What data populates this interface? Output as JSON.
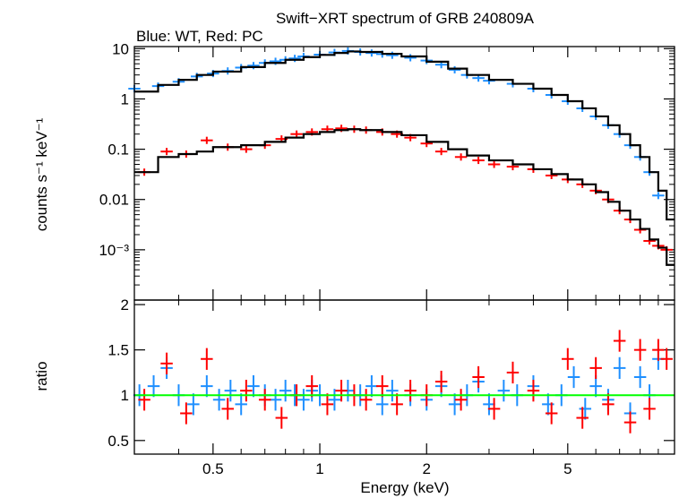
{
  "chart_data": [
    {
      "type": "scatter",
      "title": "Swift−XRT spectrum of GRB 240809A",
      "subtitle": "Blue: WT, Red: PC",
      "ylabel": "counts s⁻¹ keV⁻¹",
      "xlabel": "",
      "xscale": "log",
      "yscale": "log",
      "xlim": [
        0.3,
        10
      ],
      "ylim": [
        0.0001,
        11
      ],
      "yticks": [
        {
          "value": 10,
          "label": "10"
        },
        {
          "value": 1,
          "label": "1"
        },
        {
          "value": 0.1,
          "label": "0.1"
        },
        {
          "value": 0.01,
          "label": "0.01"
        },
        {
          "value": 0.001,
          "label": "10⁻³"
        }
      ],
      "series": [
        {
          "color": "#1e8fff",
          "style": "errorbars",
          "x": [
            0.3,
            0.35,
            0.4,
            0.45,
            0.5,
            0.55,
            0.6,
            0.65,
            0.7,
            0.75,
            0.8,
            0.85,
            0.9,
            1.0,
            1.1,
            1.2,
            1.3,
            1.4,
            1.5,
            1.6,
            1.8,
            2.0,
            2.2,
            2.4,
            2.6,
            2.8,
            3.0,
            3.5,
            4.0,
            4.5,
            5.0,
            5.5,
            6.0,
            6.5,
            7.0,
            7.5,
            8.0,
            8.5,
            9.0
          ],
          "y": [
            1.6,
            1.8,
            2.2,
            2.8,
            3.2,
            3.6,
            4.2,
            4.6,
            5.2,
            5.6,
            6.0,
            6.4,
            7.0,
            7.6,
            8.4,
            9.0,
            8.6,
            8.2,
            7.8,
            7.4,
            6.6,
            5.8,
            4.8,
            3.8,
            3.0,
            2.6,
            2.3,
            2.0,
            1.6,
            1.2,
            0.9,
            0.65,
            0.45,
            0.3,
            0.2,
            0.12,
            0.07,
            0.035,
            0.012
          ]
        },
        {
          "color": "#ff0000",
          "style": "errorbars",
          "x": [
            0.32,
            0.37,
            0.42,
            0.48,
            0.55,
            0.62,
            0.7,
            0.78,
            0.86,
            0.95,
            1.05,
            1.15,
            1.25,
            1.35,
            1.5,
            1.65,
            1.8,
            2.0,
            2.2,
            2.5,
            2.8,
            3.1,
            3.5,
            4.0,
            4.5,
            5.0,
            5.5,
            6.0,
            6.5,
            7.0,
            7.5,
            8.0,
            8.5,
            9.0,
            9.5
          ],
          "y": [
            0.035,
            0.09,
            0.08,
            0.15,
            0.11,
            0.1,
            0.12,
            0.16,
            0.2,
            0.22,
            0.25,
            0.26,
            0.25,
            0.24,
            0.22,
            0.2,
            0.17,
            0.13,
            0.09,
            0.07,
            0.06,
            0.05,
            0.045,
            0.04,
            0.03,
            0.025,
            0.02,
            0.015,
            0.01,
            0.006,
            0.004,
            0.0025,
            0.0015,
            0.0012,
            0.001
          ]
        },
        {
          "color": "#000000",
          "style": "step-model",
          "x": [
            0.3,
            0.35,
            0.4,
            0.45,
            0.5,
            0.6,
            0.7,
            0.8,
            0.9,
            1.0,
            1.1,
            1.2,
            1.3,
            1.5,
            1.7,
            2.0,
            2.3,
            2.6,
            3.0,
            3.5,
            4.0,
            4.5,
            5.0,
            5.5,
            6.0,
            6.5,
            7.0,
            7.5,
            8.0,
            8.5,
            9.0,
            9.5
          ],
          "y": [
            1.4,
            1.9,
            2.4,
            3.0,
            3.5,
            4.3,
            5.2,
            6.0,
            6.8,
            7.5,
            8.2,
            8.8,
            8.6,
            7.9,
            7.0,
            5.5,
            4.0,
            3.0,
            2.4,
            2.0,
            1.6,
            1.2,
            0.9,
            0.65,
            0.45,
            0.3,
            0.2,
            0.12,
            0.07,
            0.035,
            0.015,
            0.004
          ]
        },
        {
          "color": "#000000",
          "style": "step-model",
          "x": [
            0.3,
            0.35,
            0.4,
            0.45,
            0.5,
            0.6,
            0.7,
            0.8,
            0.9,
            1.0,
            1.1,
            1.2,
            1.3,
            1.5,
            1.7,
            2.0,
            2.3,
            2.6,
            3.0,
            3.5,
            4.0,
            4.5,
            5.0,
            5.5,
            6.0,
            6.5,
            7.0,
            7.5,
            8.0,
            8.5,
            9.0,
            9.5
          ],
          "y": [
            0.035,
            0.07,
            0.08,
            0.09,
            0.11,
            0.12,
            0.14,
            0.17,
            0.2,
            0.22,
            0.24,
            0.25,
            0.24,
            0.22,
            0.19,
            0.14,
            0.1,
            0.075,
            0.06,
            0.05,
            0.04,
            0.032,
            0.025,
            0.02,
            0.014,
            0.009,
            0.006,
            0.004,
            0.0026,
            0.0016,
            0.0011,
            0.0005
          ]
        }
      ]
    },
    {
      "type": "scatter",
      "title": "",
      "xlabel": "Energy (keV)",
      "ylabel": "ratio",
      "xscale": "log",
      "xlim": [
        0.3,
        10
      ],
      "ylim": [
        0.35,
        2.05
      ],
      "xticks": [
        {
          "value": 0.5,
          "label": "0.5"
        },
        {
          "value": 1,
          "label": "1"
        },
        {
          "value": 2,
          "label": "2"
        },
        {
          "value": 5,
          "label": "5"
        }
      ],
      "yticks": [
        {
          "value": 0.5,
          "label": "0.5"
        },
        {
          "value": 1,
          "label": "1"
        },
        {
          "value": 1.5,
          "label": "1.5"
        },
        {
          "value": 2,
          "label": "2"
        }
      ],
      "reference_line": {
        "value": 1,
        "color": "#00ff00"
      },
      "series": [
        {
          "color": "#1e8fff",
          "style": "errorbars",
          "x": [
            0.31,
            0.34,
            0.37,
            0.4,
            0.44,
            0.48,
            0.52,
            0.56,
            0.6,
            0.65,
            0.7,
            0.75,
            0.8,
            0.85,
            0.9,
            0.95,
            1.0,
            1.1,
            1.2,
            1.3,
            1.4,
            1.5,
            1.6,
            1.8,
            2.0,
            2.2,
            2.4,
            2.6,
            2.8,
            3.0,
            3.3,
            3.6,
            4.0,
            4.4,
            4.8,
            5.2,
            5.6,
            6.0,
            6.5,
            7.0,
            7.5,
            8.0,
            8.5,
            9.0
          ],
          "y": [
            1.0,
            1.1,
            1.3,
            1.0,
            0.9,
            1.1,
            0.95,
            1.05,
            0.9,
            1.1,
            1.0,
            0.95,
            1.05,
            1.0,
            0.95,
            1.05,
            1.0,
            0.95,
            1.05,
            1.0,
            1.1,
            0.9,
            1.05,
            1.0,
            0.95,
            1.1,
            0.9,
            1.0,
            1.15,
            0.9,
            1.05,
            1.0,
            1.1,
            0.9,
            1.0,
            1.2,
            0.85,
            1.1,
            0.95,
            1.3,
            0.8,
            1.2,
            1.0,
            1.4
          ]
        },
        {
          "color": "#ff0000",
          "style": "errorbars",
          "x": [
            0.32,
            0.37,
            0.42,
            0.48,
            0.55,
            0.62,
            0.7,
            0.78,
            0.86,
            0.95,
            1.05,
            1.15,
            1.25,
            1.35,
            1.5,
            1.65,
            1.8,
            2.0,
            2.2,
            2.5,
            2.8,
            3.1,
            3.5,
            4.0,
            4.5,
            5.0,
            5.5,
            6.0,
            6.5,
            7.0,
            7.5,
            8.0,
            8.5,
            9.0,
            9.5
          ],
          "y": [
            0.95,
            1.35,
            0.8,
            1.4,
            0.85,
            1.05,
            0.95,
            0.75,
            1.0,
            1.1,
            0.9,
            1.05,
            1.0,
            0.95,
            1.1,
            0.9,
            1.05,
            1.0,
            1.15,
            0.95,
            1.2,
            0.85,
            1.25,
            1.05,
            0.8,
            1.4,
            0.75,
            1.3,
            0.9,
            1.6,
            0.7,
            1.5,
            0.85,
            1.5,
            1.4
          ]
        }
      ]
    }
  ]
}
